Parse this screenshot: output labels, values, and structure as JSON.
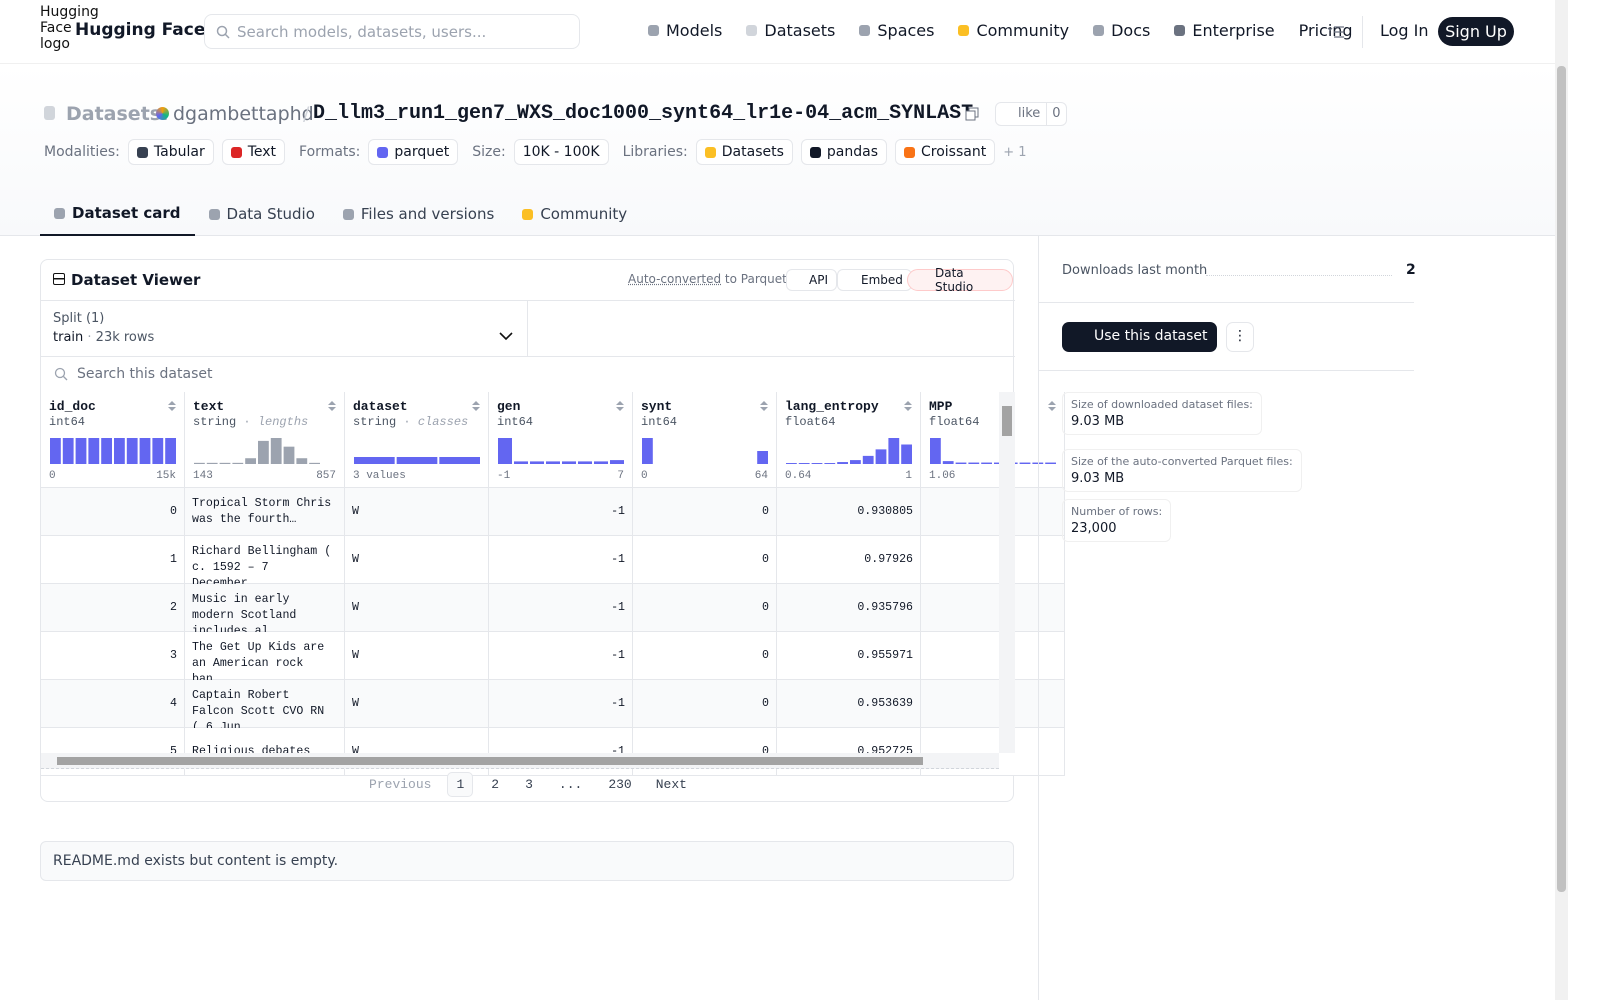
{
  "nav": {
    "logo_alt": "Hugging Face logo",
    "brand": "Hugging Face",
    "search_placeholder": "Search models, datasets, users...",
    "links": [
      "Models",
      "Datasets",
      "Spaces",
      "Community",
      "Docs",
      "Enterprise",
      "Pricing"
    ],
    "login": "Log In",
    "signup": "Sign Up"
  },
  "header": {
    "section": "Datasets:",
    "owner": "dgambettaphd",
    "separator": "/",
    "name": "D_llm3_run1_gen7_WXS_doc1000_synt64_lr1e-04_acm_SYNLAST",
    "like": "like",
    "likes": 0,
    "tag_groups": [
      {
        "label": "Modalities:",
        "items": [
          "Tabular",
          "Text"
        ]
      },
      {
        "label": "Formats:",
        "items": [
          "parquet"
        ]
      },
      {
        "label": "Size:",
        "items": [
          "10K - 100K"
        ]
      },
      {
        "label": "Libraries:",
        "items": [
          "Datasets",
          "pandas",
          "Croissant"
        ]
      }
    ],
    "more": "+ 1"
  },
  "tabs": [
    "Dataset card",
    "Data Studio",
    "Files and versions",
    "Community"
  ],
  "viewer": {
    "title": "Dataset Viewer",
    "auto_converted": "Auto-converted",
    "to_parquet": "to Parquet",
    "api": "API",
    "embed": "Embed",
    "data_studio": "Data Studio",
    "split_label": "Split (1)",
    "split": "train",
    "split_rows": "23k rows",
    "search": "Search this dataset",
    "columns": [
      {
        "name": "id_doc",
        "type": "int64",
        "min": "0",
        "max": "15k",
        "hist": [
          1,
          1,
          1,
          1,
          1,
          1,
          1,
          1,
          1,
          1
        ]
      },
      {
        "name": "text",
        "type": "string",
        "hint": "lengths",
        "min": "143",
        "max": "857",
        "hist": [
          0.4,
          0.4,
          0.4,
          0.4,
          2,
          8,
          9,
          6,
          2,
          0.4
        ]
      },
      {
        "name": "dataset",
        "type": "string",
        "hint": "classes",
        "min": "3 values",
        "hist": [
          1,
          1,
          1
        ]
      },
      {
        "name": "gen",
        "type": "int64",
        "min": "-1",
        "max": "7",
        "hist": [
          10,
          1,
          1,
          1,
          1,
          1,
          1,
          1.5
        ]
      },
      {
        "name": "synt",
        "type": "int64",
        "min": "0",
        "max": "64",
        "hist": [
          10,
          0,
          0,
          0,
          0,
          0,
          0,
          0,
          0,
          5
        ]
      },
      {
        "name": "lang_entropy",
        "type": "float64",
        "min": "0.64",
        "max": "1",
        "hist": [
          0.3,
          0.3,
          0.3,
          0.3,
          0.6,
          1.2,
          2.5,
          4.5,
          8,
          6
        ]
      },
      {
        "name": "MPP",
        "type": "float64",
        "min": "1.06",
        "hist": [
          9,
          1,
          0.5,
          0.5,
          0.5,
          0.5,
          0.5,
          0.5,
          0.5,
          0.5
        ]
      }
    ],
    "rows": [
      [
        0,
        "Tropical Storm Chris was the fourth…",
        "W",
        -1,
        0,
        0.930805
      ],
      [
        1,
        "Richard Bellingham ( c. 1592 – 7 December…",
        "W",
        -1,
        0,
        0.97926
      ],
      [
        2,
        "Music in early modern Scotland includes al…",
        "W",
        -1,
        0,
        0.935796
      ],
      [
        3,
        "The Get Up Kids are an American rock ban…",
        "W",
        -1,
        0,
        0.955971
      ],
      [
        4,
        "Captain Robert Falcon Scott CVO RN ( 6 Jun…",
        "W",
        -1,
        0,
        0.953639
      ],
      [
        5,
        "Religious debates",
        "W",
        -1,
        0,
        0.952725
      ]
    ],
    "pagination": {
      "previous": "Previous",
      "pages": [
        "1",
        "2",
        "3",
        "...",
        "230"
      ],
      "next": "Next"
    }
  },
  "readme": "README.md exists but content is empty.",
  "sidebar": {
    "downloads_label": "Downloads last month",
    "downloads": 2,
    "use_dataset": "Use this dataset",
    "stats": [
      {
        "label": "Size of downloaded dataset files:",
        "value": "9.03 MB"
      },
      {
        "label": "Size of the auto-converted Parquet files:",
        "value": "9.03 MB"
      },
      {
        "label": "Number of rows:",
        "value": "23,000"
      }
    ]
  }
}
